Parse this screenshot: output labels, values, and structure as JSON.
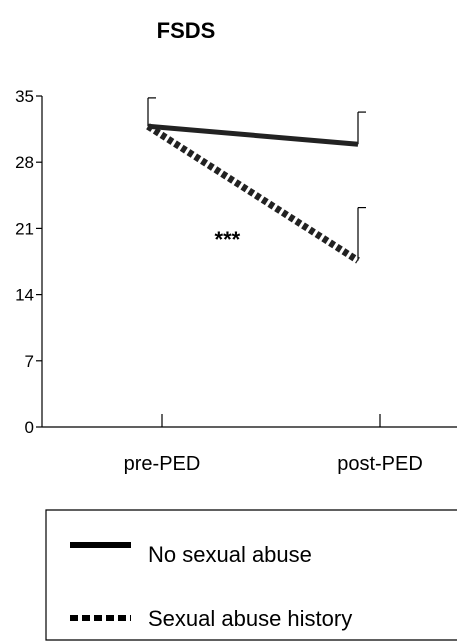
{
  "chart_data": {
    "type": "line",
    "title": "FSDS",
    "xlabel": "",
    "ylabel": "",
    "categories": [
      "pre-PED",
      "post-PED"
    ],
    "ylim": [
      0,
      35
    ],
    "yticks": [
      0,
      7,
      14,
      21,
      28,
      35
    ],
    "grid": false,
    "legend_position": "bottom",
    "series": [
      {
        "name": "No sexual abuse",
        "values": [
          31.8,
          29.9
        ],
        "error": [
          3.0,
          3.4
        ],
        "line_style": "solid",
        "color": "#222222"
      },
      {
        "name": "Sexual abuse history",
        "values": [
          31.8,
          17.6
        ],
        "error": [
          3.0,
          5.6
        ],
        "line_style": "dotted",
        "color": "#222222"
      }
    ],
    "annotations": [
      {
        "text": "***",
        "x": 0.3,
        "y": 20.5
      }
    ]
  }
}
